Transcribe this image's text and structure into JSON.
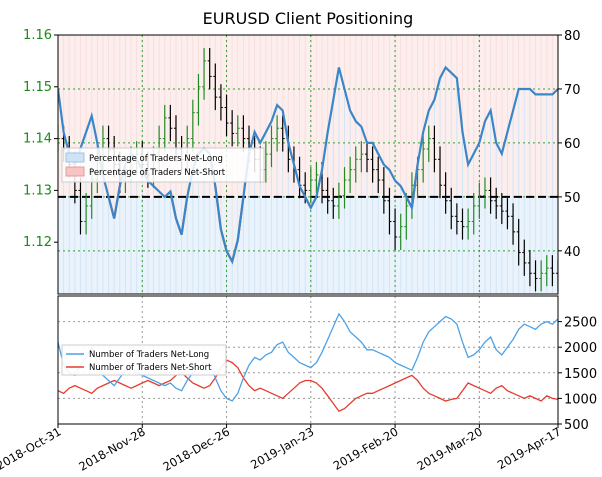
{
  "chart_data": {
    "title": "EURUSD Client Positioning",
    "type": "line",
    "x_ticks": [
      "2018-Oct-31",
      "2018-Nov-28",
      "2018-Dec-26",
      "2019-Jan-23",
      "2019-Feb-20",
      "2019-Mar-20",
      "2019-Apr-17"
    ],
    "top_panel": {
      "left_axis": {
        "ticks": [
          "1.16",
          "1.15",
          "1.14",
          "1.13",
          "1.12"
        ],
        "range": [
          1.11,
          1.16
        ],
        "color": "#1a8a1a"
      },
      "right_axis": {
        "ticks": [
          "80",
          "70",
          "60",
          "50",
          "40"
        ],
        "range": [
          32,
          80
        ]
      },
      "reference_line": 50,
      "legend": [
        {
          "label": "Percentage of Traders Net-Long",
          "color": "#cfe3f5"
        },
        {
          "label": "Percentage of Traders Net-Short",
          "color": "#f8c4c4"
        }
      ],
      "series": {
        "name": "",
        "color": "#3a86c8",
        "x": [
          0,
          2,
          4,
          6,
          8,
          10,
          12,
          14,
          16,
          18,
          20,
          22,
          24,
          26,
          28,
          30,
          32,
          34,
          36,
          38,
          40,
          42,
          44,
          46,
          48,
          50,
          52,
          54,
          56,
          58,
          60,
          62,
          64,
          66,
          68,
          70,
          72,
          74,
          76,
          78,
          80,
          82,
          84,
          86,
          88,
          90,
          92,
          94,
          96,
          98,
          100,
          102,
          104,
          106,
          108,
          110,
          112,
          114,
          116,
          118,
          120,
          122,
          124,
          126,
          128,
          130,
          132,
          134,
          136,
          138,
          140,
          142,
          144,
          146,
          148,
          150,
          152,
          154,
          156,
          158,
          160,
          162,
          164,
          166,
          168,
          170,
          172,
          174,
          176,
          178
        ],
        "values": [
          70,
          62,
          58,
          56,
          59,
          62,
          65,
          60,
          54,
          50,
          46,
          52,
          56,
          58,
          57,
          55,
          53,
          52,
          51,
          50,
          51,
          46,
          43,
          50,
          55,
          58,
          59,
          58,
          52,
          44,
          40,
          38,
          42,
          50,
          58,
          62,
          60,
          62,
          64,
          67,
          66,
          60,
          56,
          52,
          50,
          48,
          50,
          55,
          62,
          68,
          74,
          70,
          66,
          64,
          63,
          60,
          60,
          58,
          56,
          55,
          53,
          52,
          50,
          48,
          56,
          62,
          66,
          68,
          72,
          74,
          73,
          72,
          62,
          56,
          58,
          60,
          64,
          66,
          60,
          58,
          62,
          66,
          70,
          70,
          70,
          69,
          69,
          69,
          69,
          70
        ]
      },
      "ohlc": {
        "color_up": "#228b22",
        "color_down": "#000000",
        "close": [
          1.14,
          1.138,
          1.135,
          1.13,
          1.124,
          1.127,
          1.132,
          1.136,
          1.14,
          1.138,
          1.135,
          1.132,
          1.134,
          1.136,
          1.137,
          1.135,
          1.133,
          1.136,
          1.14,
          1.144,
          1.142,
          1.138,
          1.136,
          1.14,
          1.145,
          1.15,
          1.155,
          1.152,
          1.148,
          1.146,
          1.143,
          1.141,
          1.142,
          1.14,
          1.138,
          1.136,
          1.134,
          1.137,
          1.14,
          1.142,
          1.14,
          1.136,
          1.134,
          1.131,
          1.13,
          1.132,
          1.133,
          1.13,
          1.128,
          1.127,
          1.129,
          1.132,
          1.134,
          1.136,
          1.137,
          1.136,
          1.134,
          1.132,
          1.128,
          1.124,
          1.121,
          1.123,
          1.127,
          1.131,
          1.134,
          1.138,
          1.14,
          1.136,
          1.131,
          1.128,
          1.125,
          1.124,
          1.123,
          1.124,
          1.127,
          1.129,
          1.13,
          1.128,
          1.127,
          1.126,
          1.125,
          1.122,
          1.118,
          1.116,
          1.114,
          1.113,
          1.114,
          1.115,
          1.114,
          1.113
        ]
      }
    },
    "bottom_panel": {
      "right_axis": {
        "ticks": [
          "2500",
          "2000",
          "1500",
          "1000",
          "500"
        ],
        "range": [
          500,
          3000
        ]
      },
      "legend": [
        {
          "label": "Number of Traders Net-Long",
          "color": "#4ea1e6"
        },
        {
          "label": "Number of Traders Net-Short",
          "color": "#e63c2e"
        }
      ],
      "series": [
        {
          "name": "Number of Traders Net-Long",
          "color": "#4ea1e6",
          "values": [
            2100,
            1650,
            1500,
            1450,
            1650,
            1800,
            2000,
            1700,
            1450,
            1350,
            1250,
            1400,
            1550,
            1600,
            1500,
            1450,
            1400,
            1350,
            1300,
            1250,
            1300,
            1200,
            1150,
            1350,
            1500,
            1600,
            1700,
            1650,
            1400,
            1150,
            1000,
            950,
            1100,
            1400,
            1650,
            1800,
            1750,
            1850,
            1900,
            2050,
            2100,
            1900,
            1800,
            1700,
            1650,
            1600,
            1700,
            1900,
            2150,
            2400,
            2650,
            2500,
            2300,
            2200,
            2100,
            1950,
            1950,
            1900,
            1850,
            1800,
            1700,
            1650,
            1600,
            1550,
            1800,
            2100,
            2300,
            2400,
            2500,
            2600,
            2550,
            2450,
            2100,
            1800,
            1850,
            1950,
            2100,
            2200,
            1950,
            1850,
            2000,
            2150,
            2350,
            2450,
            2400,
            2350,
            2450,
            2500,
            2450,
            2550
          ]
        },
        {
          "name": "Number of Traders Net-Short",
          "color": "#e63c2e",
          "values": [
            1150,
            1100,
            1200,
            1250,
            1200,
            1150,
            1100,
            1200,
            1250,
            1300,
            1350,
            1300,
            1250,
            1200,
            1250,
            1300,
            1350,
            1300,
            1250,
            1300,
            1350,
            1450,
            1500,
            1400,
            1300,
            1250,
            1200,
            1250,
            1400,
            1600,
            1750,
            1700,
            1600,
            1400,
            1250,
            1150,
            1200,
            1150,
            1100,
            1050,
            1000,
            1100,
            1200,
            1300,
            1350,
            1350,
            1300,
            1200,
            1050,
            900,
            750,
            800,
            900,
            1000,
            1050,
            1100,
            1100,
            1150,
            1200,
            1250,
            1300,
            1350,
            1400,
            1450,
            1350,
            1200,
            1100,
            1050,
            1000,
            950,
            980,
            1000,
            1150,
            1300,
            1250,
            1200,
            1150,
            1100,
            1200,
            1250,
            1150,
            1100,
            1050,
            1000,
            1050,
            1000,
            950,
            1050,
            1000,
            980
          ]
        }
      ]
    }
  }
}
